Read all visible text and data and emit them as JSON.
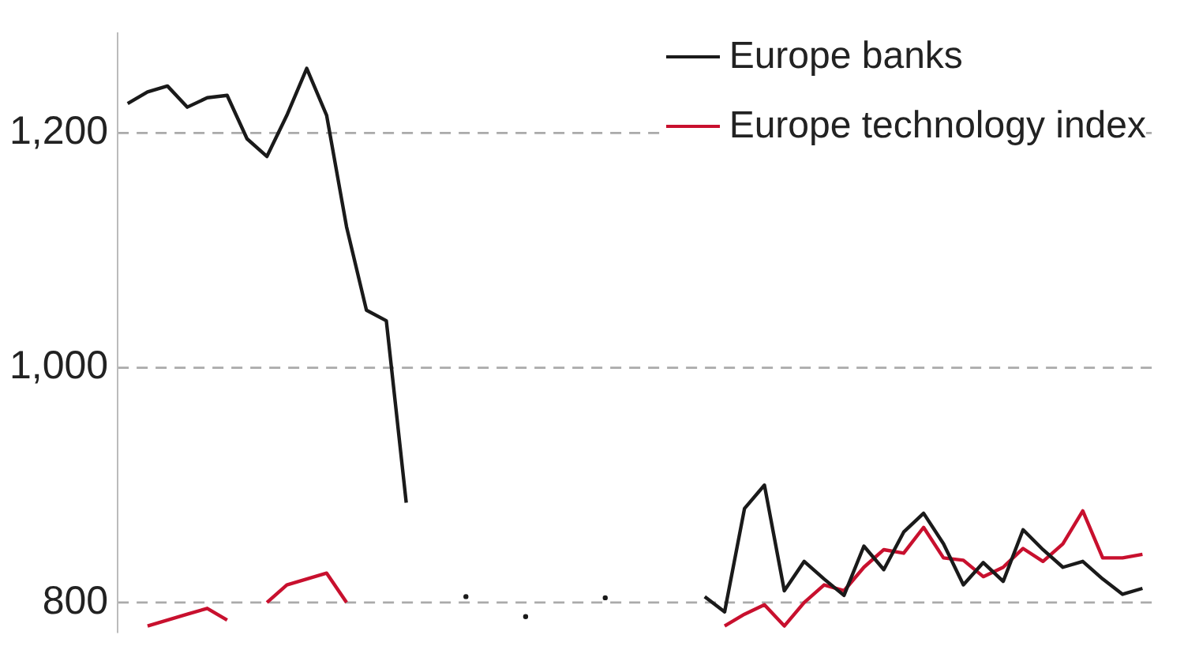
{
  "chart_data": {
    "type": "line",
    "categories": [
      null,
      null,
      null,
      null,
      null,
      null,
      null,
      null,
      null,
      null,
      null,
      null,
      null,
      null,
      null,
      null,
      null,
      null,
      null,
      null,
      null,
      null,
      null,
      null,
      null,
      null,
      null,
      null,
      null,
      null,
      null,
      null,
      null,
      null,
      null,
      null,
      null,
      null,
      null,
      null,
      null,
      null,
      null,
      null,
      null,
      null,
      null,
      null,
      null,
      null,
      null,
      null
    ],
    "series": [
      {
        "name": "Europe banks",
        "color": "#1a1a1a",
        "values": [
          1225,
          1235,
          1240,
          1222,
          1230,
          1232,
          1195,
          1180,
          1215,
          1255,
          1215,
          1120,
          1049,
          1040,
          885,
          null,
          null,
          805,
          null,
          null,
          788,
          null,
          null,
          null,
          804,
          null,
          null,
          null,
          null,
          805,
          792,
          880,
          900,
          810,
          835,
          820,
          806,
          848,
          828,
          860,
          876,
          850,
          815,
          834,
          818,
          862,
          845,
          830,
          835,
          820,
          807,
          812
        ]
      },
      {
        "name": "Europe technology index",
        "color": "#c8102e",
        "values": [
          null,
          780,
          785,
          790,
          795,
          785,
          null,
          800,
          815,
          820,
          825,
          800,
          null,
          null,
          null,
          null,
          null,
          null,
          null,
          null,
          null,
          null,
          null,
          null,
          null,
          null,
          null,
          null,
          null,
          null,
          780,
          790,
          798,
          780,
          800,
          815,
          810,
          830,
          845,
          842,
          864,
          838,
          836,
          822,
          830,
          846,
          835,
          850,
          878,
          838,
          838,
          841
        ]
      }
    ],
    "ylim": [
      775,
      1285
    ],
    "yticks": [
      800,
      {
        "value": 1000,
        "label": "1,000"
      },
      {
        "value": 1200,
        "label": "1,200"
      }
    ],
    "grid": "y",
    "legend": "top right",
    "marker": "none",
    "line_style": "solid"
  }
}
